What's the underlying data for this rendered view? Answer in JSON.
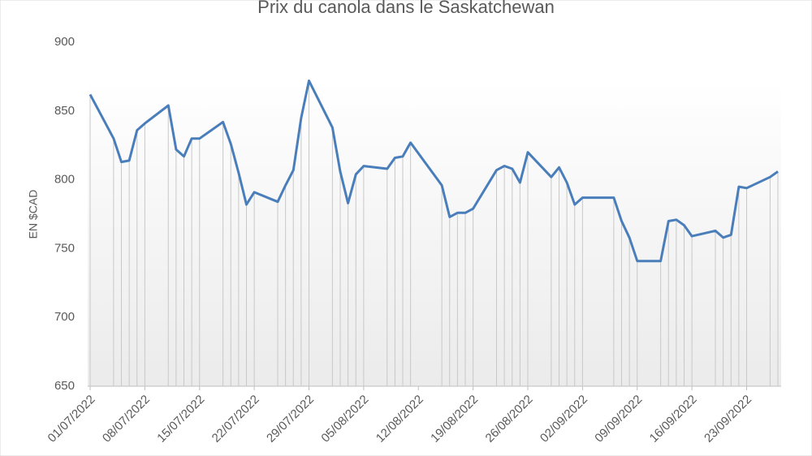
{
  "chart_data": {
    "type": "line",
    "title": "Prix du canola dans le Saskatchewan",
    "y_label": "EN $CAD",
    "x": [
      "2022-07-01",
      "2022-07-04",
      "2022-07-05",
      "2022-07-06",
      "2022-07-07",
      "2022-07-08",
      "2022-07-11",
      "2022-07-12",
      "2022-07-13",
      "2022-07-14",
      "2022-07-15",
      "2022-07-18",
      "2022-07-19",
      "2022-07-20",
      "2022-07-21",
      "2022-07-22",
      "2022-07-25",
      "2022-07-26",
      "2022-07-27",
      "2022-07-28",
      "2022-07-29",
      "2022-08-01",
      "2022-08-02",
      "2022-08-03",
      "2022-08-04",
      "2022-08-05",
      "2022-08-08",
      "2022-08-09",
      "2022-08-10",
      "2022-08-11",
      "2022-08-15",
      "2022-08-16",
      "2022-08-17",
      "2022-08-18",
      "2022-08-19",
      "2022-08-22",
      "2022-08-23",
      "2022-08-24",
      "2022-08-25",
      "2022-08-26",
      "2022-08-29",
      "2022-08-30",
      "2022-08-31",
      "2022-09-01",
      "2022-09-02",
      "2022-09-06",
      "2022-09-07",
      "2022-09-08",
      "2022-09-09",
      "2022-09-12",
      "2022-09-13",
      "2022-09-14",
      "2022-09-15",
      "2022-09-16",
      "2022-09-19",
      "2022-09-20",
      "2022-09-21",
      "2022-09-22",
      "2022-09-23",
      "2022-09-26",
      "2022-09-27"
    ],
    "values": [
      862,
      830,
      813,
      814,
      836,
      841,
      854,
      822,
      817,
      830,
      830,
      842,
      826,
      805,
      782,
      791,
      784,
      796,
      807,
      845,
      872,
      838,
      806,
      783,
      804,
      810,
      808,
      816,
      817,
      827,
      796,
      773,
      776,
      776,
      779,
      807,
      810,
      808,
      798,
      820,
      802,
      809,
      798,
      782,
      787,
      787,
      770,
      758,
      741,
      741,
      770,
      771,
      767,
      759,
      763,
      758,
      760,
      795,
      794,
      802,
      806
    ],
    "color": "#4a7ebb",
    "xlim": [
      "2022-07-01",
      "2022-09-27"
    ],
    "xticks": [
      {
        "value": "2022-07-01",
        "label": "01/07/2022"
      },
      {
        "value": "2022-07-08",
        "label": "08/07/2022"
      },
      {
        "value": "2022-07-15",
        "label": "15/07/2022"
      },
      {
        "value": "2022-07-22",
        "label": "22/07/2022"
      },
      {
        "value": "2022-07-29",
        "label": "29/07/2022"
      },
      {
        "value": "2022-08-05",
        "label": "05/08/2022"
      },
      {
        "value": "2022-08-12",
        "label": "12/08/2022"
      },
      {
        "value": "2022-08-19",
        "label": "19/08/2022"
      },
      {
        "value": "2022-08-26",
        "label": "26/08/2022"
      },
      {
        "value": "2022-09-02",
        "label": "02/09/2022"
      },
      {
        "value": "2022-09-09",
        "label": "09/09/2022"
      },
      {
        "value": "2022-09-16",
        "label": "16/09/2022"
      },
      {
        "value": "2022-09-23",
        "label": "23/09/2022"
      }
    ],
    "ylim": [
      650,
      900
    ],
    "yticks": [
      650,
      700,
      750,
      800,
      850,
      900
    ],
    "drop_lines": true
  }
}
